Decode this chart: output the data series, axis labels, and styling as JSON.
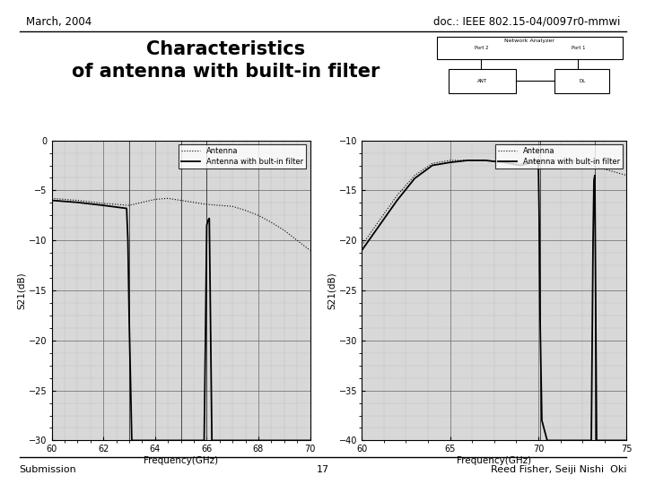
{
  "title_line1": "Characteristics",
  "title_line2": "of antenna with built-in filter",
  "header_left": "March, 2004",
  "header_right": "doc.: IEEE 802.15-04/0097r0-mmwi",
  "footer_left": "Submission",
  "footer_center": "17",
  "footer_right": "Reed Fisher, Seiji Nishi  Oki",
  "bg_color": "#ffffff",
  "plot1": {
    "xlim": [
      60,
      70
    ],
    "ylim": [
      -30,
      0
    ],
    "yticks": [
      0,
      -5,
      -10,
      -15,
      -20,
      -25,
      -30
    ],
    "xticks": [
      60,
      62,
      64,
      66,
      68,
      70
    ],
    "xlabel": "Frequency(GHz)",
    "ylabel": "S21(dB)",
    "antenna_x": [
      60,
      61,
      62,
      63,
      63.5,
      64,
      64.5,
      65,
      65.5,
      66,
      66.5,
      67,
      67.5,
      68,
      68.5,
      69,
      69.5,
      70
    ],
    "antenna_y": [
      -5.8,
      -6.0,
      -6.3,
      -6.5,
      -6.2,
      -5.9,
      -5.8,
      -6.0,
      -6.2,
      -6.4,
      -6.5,
      -6.6,
      -7.0,
      -7.5,
      -8.2,
      -9.0,
      -10.0,
      -11.0
    ],
    "filter_x": [
      60.0,
      61.0,
      62.0,
      62.9,
      62.95,
      63.0,
      63.05,
      63.1,
      63.2,
      63.5,
      63.8,
      64.0,
      64.5,
      65.0,
      65.5,
      65.9,
      65.95,
      66.0,
      66.05,
      66.1,
      66.2,
      66.5,
      67.0,
      67.5,
      68.0,
      68.5,
      69.0,
      69.5,
      70.0
    ],
    "filter_y": [
      -6.0,
      -6.2,
      -6.5,
      -6.8,
      -10.0,
      -18.0,
      -24.0,
      -30.0,
      -30.0,
      -30.0,
      -30.0,
      -30.0,
      -30.0,
      -30.0,
      -30.0,
      -30.0,
      -20.0,
      -8.5,
      -8.0,
      -7.8,
      -30.0,
      -30.0,
      -30.0,
      -30.0,
      -30.0,
      -30.0,
      -30.0,
      -30.0,
      -30.0
    ],
    "vlines": [
      63.0,
      65.0,
      66.0
    ],
    "legend_antenna": "Antenna",
    "legend_filter": "Antenna with bult-in filter"
  },
  "plot2": {
    "xlim": [
      60,
      75
    ],
    "ylim": [
      -40,
      -10
    ],
    "yticks": [
      -10,
      -15,
      -20,
      -25,
      -30,
      -35,
      -40
    ],
    "xticks": [
      60,
      65,
      70,
      75
    ],
    "xlabel": "Frequency(GHz)",
    "ylabel": "S21(dB)",
    "antenna_x": [
      60,
      61,
      62,
      63,
      64,
      65,
      66,
      67,
      68,
      69,
      70,
      71,
      72,
      73,
      74,
      75
    ],
    "antenna_y": [
      -20.5,
      -18.0,
      -15.5,
      -13.5,
      -12.3,
      -12.0,
      -12.0,
      -12.0,
      -12.2,
      -12.3,
      -12.0,
      -12.0,
      -12.0,
      -12.5,
      -13.0,
      -13.5
    ],
    "filter_x": [
      60.0,
      61.0,
      62.0,
      63.0,
      64.0,
      65.0,
      66.0,
      67.0,
      68.0,
      69.0,
      70.0,
      70.05,
      70.1,
      70.2,
      70.5,
      71.0,
      71.5,
      72.0,
      72.5,
      73.0,
      73.1,
      73.15,
      73.2,
      73.3,
      73.5,
      74.0,
      74.5,
      75.0
    ],
    "filter_y": [
      -21.0,
      -18.5,
      -16.0,
      -13.8,
      -12.5,
      -12.2,
      -12.0,
      -12.0,
      -12.2,
      -12.5,
      -12.0,
      -18.0,
      -28.0,
      -38.0,
      -40.0,
      -40.0,
      -40.0,
      -40.0,
      -40.0,
      -40.0,
      -20.0,
      -14.0,
      -13.5,
      -40.0,
      -40.0,
      -40.0,
      -40.0,
      -40.0
    ],
    "vlines": [
      70.1,
      73.2
    ],
    "legend_antenna": "Antenna",
    "legend_filter": "Antenna with bult-in filter"
  }
}
